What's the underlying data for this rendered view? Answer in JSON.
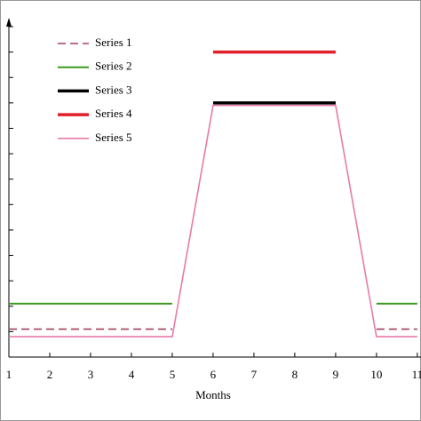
{
  "chart_data": {
    "type": "line",
    "x_label": "Months",
    "x": [
      1,
      2,
      3,
      4,
      5,
      6,
      7,
      8,
      9,
      10,
      11
    ],
    "xlim": [
      1,
      11.09
    ],
    "xticks": [
      1,
      2,
      3,
      4,
      5,
      6,
      7,
      8,
      9,
      10,
      11
    ],
    "ylim": [
      0,
      13
    ],
    "yticks": [
      0,
      1,
      2,
      3,
      4,
      5,
      6,
      7,
      8,
      9,
      10,
      11,
      12,
      13
    ],
    "legend": "upper left",
    "series": [
      {
        "name": "Series 1",
        "color": "#a0405a",
        "dashed": true,
        "values": [
          1.1,
          1.1,
          1.1,
          1.1,
          1.1,
          null,
          null,
          null,
          null,
          1.1,
          1.1
        ]
      },
      {
        "name": "Series 2",
        "color": "#3a9a1e",
        "values": [
          2.1,
          2.1,
          2.1,
          2.1,
          2.1,
          null,
          null,
          null,
          null,
          2.1,
          2.1
        ]
      },
      {
        "name": "Series 3",
        "color": "#000000",
        "values": [
          null,
          null,
          null,
          null,
          null,
          10,
          10,
          10,
          10,
          null,
          null
        ]
      },
      {
        "name": "Series 4",
        "color": "#e0202a",
        "values": [
          null,
          null,
          null,
          null,
          null,
          12,
          12,
          12,
          12,
          null,
          null
        ]
      },
      {
        "name": "Series 5",
        "color": "#e87aa8",
        "values": [
          0.8,
          0.8,
          0.8,
          0.8,
          0.8,
          9.9,
          9.9,
          9.9,
          9.9,
          0.8,
          0.8
        ]
      }
    ]
  }
}
